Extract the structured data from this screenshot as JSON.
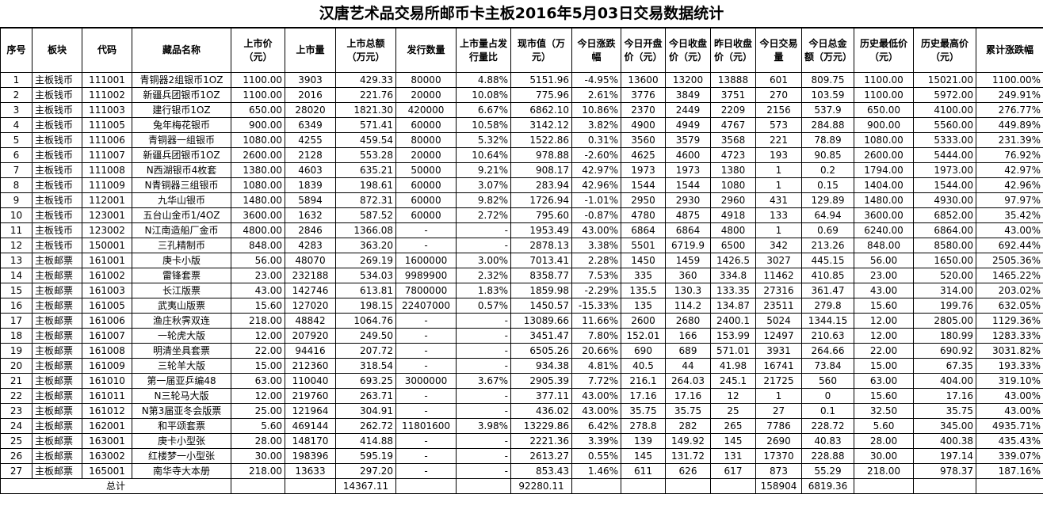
{
  "title": "汉唐艺术品交易所邮币卡主板2016年5月03日交易数据统计",
  "headers": [
    "序号",
    "板块",
    "代码",
    "藏品名称",
    "上市价（元）",
    "上市量",
    "上市总额（万元）",
    "发行数量",
    "上市量占发行量比",
    "现市值（万元）",
    "今日涨跌幅",
    "今日开盘价（元）",
    "今日收盘价（元）",
    "昨日收盘价（元）",
    "今日交易量",
    "今日总金额（万元）",
    "历史最低价（元）",
    "历史最高价（元）",
    "累计涨跌幅"
  ],
  "rows": [
    [
      "1",
      "主板钱币",
      "111001",
      "青铜器2组银币1OZ",
      "1100.00",
      "3903",
      "429.33",
      "80000",
      "4.88%",
      "5151.96",
      "-4.95%",
      "13600",
      "13200",
      "13888",
      "601",
      "809.75",
      "1100.00",
      "15021.00",
      "1100.00%"
    ],
    [
      "2",
      "主板钱币",
      "111002",
      "新疆兵团银币1OZ",
      "1100.00",
      "2016",
      "221.76",
      "20000",
      "10.08%",
      "775.96",
      "2.61%",
      "3776",
      "3849",
      "3751",
      "270",
      "103.59",
      "1100.00",
      "5972.00",
      "249.91%"
    ],
    [
      "3",
      "主板钱币",
      "111003",
      "建行银币1OZ",
      "650.00",
      "28020",
      "1821.30",
      "420000",
      "6.67%",
      "6862.10",
      "10.86%",
      "2370",
      "2449",
      "2209",
      "2156",
      "537.9",
      "650.00",
      "4100.00",
      "276.77%"
    ],
    [
      "4",
      "主板钱币",
      "111005",
      "兔年梅花银币",
      "900.00",
      "6349",
      "571.41",
      "60000",
      "10.58%",
      "3142.12",
      "3.82%",
      "4900",
      "4949",
      "4767",
      "573",
      "284.88",
      "900.00",
      "5560.00",
      "449.89%"
    ],
    [
      "5",
      "主板钱币",
      "111006",
      "青铜器一组银币",
      "1080.00",
      "4255",
      "459.54",
      "80000",
      "5.32%",
      "1522.86",
      "0.31%",
      "3560",
      "3579",
      "3568",
      "221",
      "78.89",
      "1080.00",
      "5333.00",
      "231.39%"
    ],
    [
      "6",
      "主板钱币",
      "111007",
      "新疆兵团银币1OZ",
      "2600.00",
      "2128",
      "553.28",
      "20000",
      "10.64%",
      "978.88",
      "-2.60%",
      "4625",
      "4600",
      "4723",
      "193",
      "90.85",
      "2600.00",
      "5444.00",
      "76.92%"
    ],
    [
      "7",
      "主板钱币",
      "111008",
      "N西湖银币4枚套",
      "1380.00",
      "4603",
      "635.21",
      "50000",
      "9.21%",
      "908.17",
      "42.97%",
      "1973",
      "1973",
      "1380",
      "1",
      "0.2",
      "1794.00",
      "1973.00",
      "42.97%"
    ],
    [
      "8",
      "主板钱币",
      "111009",
      "N青铜器三组银币",
      "1080.00",
      "1839",
      "198.61",
      "60000",
      "3.07%",
      "283.94",
      "42.96%",
      "1544",
      "1544",
      "1080",
      "1",
      "0.15",
      "1404.00",
      "1544.00",
      "42.96%"
    ],
    [
      "9",
      "主板钱币",
      "112001",
      "九华山银币",
      "1480.00",
      "5894",
      "872.31",
      "60000",
      "9.82%",
      "1726.94",
      "-1.01%",
      "2950",
      "2930",
      "2960",
      "431",
      "129.89",
      "1480.00",
      "4930.00",
      "97.97%"
    ],
    [
      "10",
      "主板钱币",
      "123001",
      "五台山金币1/4OZ",
      "3600.00",
      "1632",
      "587.52",
      "60000",
      "2.72%",
      "795.60",
      "-0.87%",
      "4780",
      "4875",
      "4918",
      "133",
      "64.94",
      "3600.00",
      "6852.00",
      "35.42%"
    ],
    [
      "11",
      "主板钱币",
      "123002",
      "N江南造船厂金币",
      "4800.00",
      "2846",
      "1366.08",
      "-",
      "-",
      "1953.49",
      "43.00%",
      "6864",
      "6864",
      "4800",
      "1",
      "0.69",
      "6240.00",
      "6864.00",
      "43.00%"
    ],
    [
      "12",
      "主板钱币",
      "150001",
      "三孔精制币",
      "848.00",
      "4283",
      "363.20",
      "-",
      "-",
      "2878.13",
      "3.38%",
      "5501",
      "6719.9",
      "6500",
      "342",
      "213.26",
      "848.00",
      "8580.00",
      "692.44%"
    ],
    [
      "13",
      "主板邮票",
      "161001",
      "庚卡小版",
      "56.00",
      "48070",
      "269.19",
      "1600000",
      "3.00%",
      "7013.41",
      "2.28%",
      "1450",
      "1459",
      "1426.5",
      "3027",
      "445.15",
      "56.00",
      "1650.00",
      "2505.36%"
    ],
    [
      "14",
      "主板邮票",
      "161002",
      "雷锋套票",
      "23.00",
      "232188",
      "534.03",
      "9989900",
      "2.32%",
      "8358.77",
      "7.53%",
      "335",
      "360",
      "334.8",
      "11462",
      "410.85",
      "23.00",
      "520.00",
      "1465.22%"
    ],
    [
      "15",
      "主板邮票",
      "161003",
      "长江版票",
      "43.00",
      "142746",
      "613.81",
      "7800000",
      "1.83%",
      "1859.98",
      "-2.29%",
      "135.5",
      "130.3",
      "133.35",
      "27316",
      "361.47",
      "43.00",
      "314.00",
      "203.02%"
    ],
    [
      "16",
      "主板邮票",
      "161005",
      "武夷山版票",
      "15.60",
      "127020",
      "198.15",
      "22407000",
      "0.57%",
      "1450.57",
      "-15.33%",
      "135",
      "114.2",
      "134.87",
      "23511",
      "279.8",
      "15.60",
      "199.76",
      "632.05%"
    ],
    [
      "17",
      "主板邮票",
      "161006",
      "渔庄秋霁双连",
      "218.00",
      "48842",
      "1064.76",
      "-",
      "-",
      "13089.66",
      "11.66%",
      "2600",
      "2680",
      "2400.1",
      "5024",
      "1344.15",
      "12.00",
      "2805.00",
      "1129.36%"
    ],
    [
      "18",
      "主板邮票",
      "161007",
      "一轮虎大版",
      "12.00",
      "207920",
      "249.50",
      "-",
      "-",
      "3451.47",
      "7.80%",
      "152.01",
      "166",
      "153.99",
      "12497",
      "210.63",
      "12.00",
      "180.99",
      "1283.33%"
    ],
    [
      "19",
      "主板邮票",
      "161008",
      "明清坐具套票",
      "22.00",
      "94416",
      "207.72",
      "-",
      "-",
      "6505.26",
      "20.66%",
      "690",
      "689",
      "571.01",
      "3931",
      "264.66",
      "22.00",
      "690.92",
      "3031.82%"
    ],
    [
      "20",
      "主板邮票",
      "161009",
      "三轮羊大版",
      "15.00",
      "212360",
      "318.54",
      "-",
      "-",
      "934.38",
      "4.81%",
      "40.5",
      "44",
      "41.98",
      "16741",
      "73.84",
      "15.00",
      "67.35",
      "193.33%"
    ],
    [
      "21",
      "主板邮票",
      "161010",
      "第一届亚乒编48",
      "63.00",
      "110040",
      "693.25",
      "3000000",
      "3.67%",
      "2905.39",
      "7.72%",
      "216.1",
      "264.03",
      "245.1",
      "21725",
      "560",
      "63.00",
      "404.00",
      "319.10%"
    ],
    [
      "22",
      "主板邮票",
      "161011",
      "N三轮马大版",
      "12.00",
      "219760",
      "263.71",
      "-",
      "-",
      "377.11",
      "43.00%",
      "17.16",
      "17.16",
      "12",
      "1",
      "0",
      "15.60",
      "17.16",
      "43.00%"
    ],
    [
      "23",
      "主板邮票",
      "161012",
      "N第3届亚冬会版票",
      "25.00",
      "121964",
      "304.91",
      "-",
      "-",
      "436.02",
      "43.00%",
      "35.75",
      "35.75",
      "25",
      "27",
      "0.1",
      "32.50",
      "35.75",
      "43.00%"
    ],
    [
      "24",
      "主板邮票",
      "162001",
      "和平颂套票",
      "5.60",
      "469144",
      "262.72",
      "11801600",
      "3.98%",
      "13229.86",
      "6.42%",
      "278.8",
      "282",
      "265",
      "7786",
      "228.72",
      "5.60",
      "345.00",
      "4935.71%"
    ],
    [
      "25",
      "主板邮票",
      "163001",
      "庚卡小型张",
      "28.00",
      "148170",
      "414.88",
      "-",
      "-",
      "2221.36",
      "3.39%",
      "139",
      "149.92",
      "145",
      "2690",
      "40.83",
      "28.00",
      "400.38",
      "435.43%"
    ],
    [
      "26",
      "主板邮票",
      "163002",
      "红楼梦一小型张",
      "30.00",
      "198396",
      "595.19",
      "-",
      "-",
      "2613.27",
      "0.55%",
      "145",
      "131.72",
      "131",
      "17370",
      "228.88",
      "30.00",
      "197.14",
      "339.07%"
    ],
    [
      "27",
      "主板邮票",
      "165001",
      "南华寺大本册",
      "218.00",
      "13633",
      "297.20",
      "-",
      "-",
      "853.43",
      "1.46%",
      "611",
      "626",
      "617",
      "873",
      "55.29",
      "218.00",
      "978.37",
      "187.16%"
    ]
  ],
  "total": {
    "label": "总计",
    "listing_total": "14367.11",
    "market_value": "92280.11",
    "volume": "158904",
    "amount": "6819.36"
  }
}
